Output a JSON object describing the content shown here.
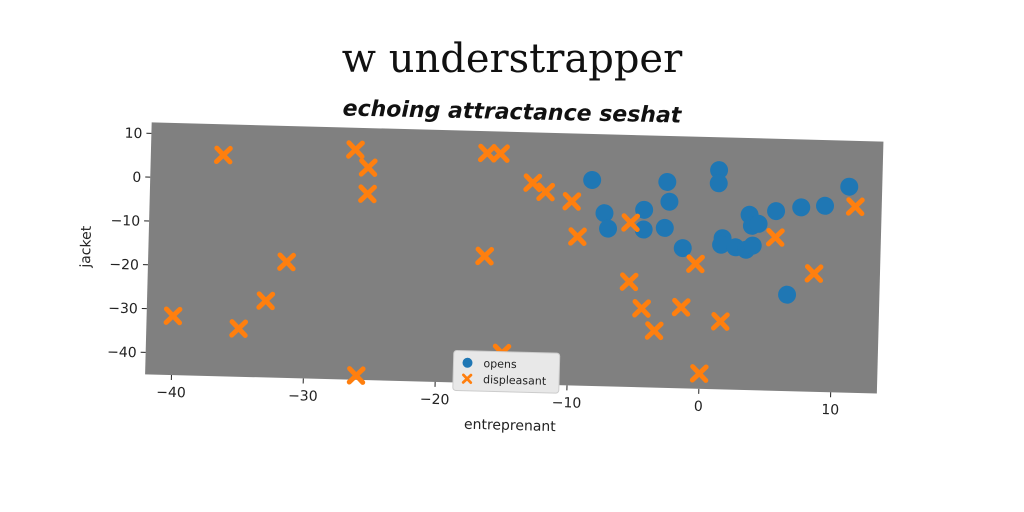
{
  "chart_data": {
    "type": "scatter",
    "title": "w understrapper",
    "subtitle": "echoing attractance seshat",
    "xlabel": "entreprenant",
    "ylabel": "jacket",
    "xlim": [
      -42,
      13.5
    ],
    "ylim": [
      -45,
      12.5
    ],
    "xticks": [
      -40,
      -30,
      -20,
      -10,
      0,
      10
    ],
    "yticks": [
      10,
      0,
      -10,
      -20,
      -30,
      -40
    ],
    "background": "#808080",
    "legend_position": "bottom-center",
    "series": [
      {
        "name": "opens",
        "marker": "circle",
        "color": "#1f77b4",
        "points": [
          [
            -8.5,
            2
          ],
          [
            -7.5,
            -5.5
          ],
          [
            -7.2,
            -9
          ],
          [
            -4.5,
            -4.5
          ],
          [
            -4.5,
            -9
          ],
          [
            -2.8,
            2
          ],
          [
            -2.6,
            -2.5
          ],
          [
            -2.9,
            -8.5
          ],
          [
            -1.5,
            -13
          ],
          [
            1.1,
            5
          ],
          [
            1.1,
            2
          ],
          [
            1.5,
            -10.5
          ],
          [
            1.4,
            -12
          ],
          [
            2.5,
            -12.5
          ],
          [
            3.3,
            -13
          ],
          [
            3.5,
            -5
          ],
          [
            3.7,
            -7.5
          ],
          [
            4.2,
            -7
          ],
          [
            3.8,
            -12
          ],
          [
            5.5,
            -4
          ],
          [
            7.4,
            -3
          ],
          [
            9.2,
            -2.5
          ],
          [
            11,
            2
          ],
          [
            6.5,
            -23
          ]
        ]
      },
      {
        "name": "displeasant",
        "marker": "x",
        "color": "#ff7f0e",
        "points": [
          [
            -36.5,
            5.5
          ],
          [
            -26.5,
            7.5
          ],
          [
            -25.5,
            3.5
          ],
          [
            -25.5,
            -2.5
          ],
          [
            -16.5,
            7.5
          ],
          [
            -15.5,
            7.5
          ],
          [
            -13,
            1
          ],
          [
            -12,
            -1
          ],
          [
            -10,
            -3
          ],
          [
            -9.5,
            -11
          ],
          [
            -5.5,
            -7.5
          ],
          [
            -5.5,
            -21
          ],
          [
            -4.5,
            -27
          ],
          [
            -3.5,
            -32
          ],
          [
            -1.5,
            -26.5
          ],
          [
            -0.5,
            -16.5
          ],
          [
            0,
            -41.5
          ],
          [
            1.5,
            -29.5
          ],
          [
            5.5,
            -10
          ],
          [
            8.5,
            -18
          ],
          [
            11.5,
            -2.5
          ],
          [
            -16.5,
            -16
          ],
          [
            -31.5,
            -18.5
          ],
          [
            -33,
            -27.5
          ],
          [
            -35,
            -34
          ],
          [
            -40,
            -31.5
          ],
          [
            -26,
            -44
          ],
          [
            -15,
            -38
          ]
        ]
      }
    ]
  }
}
